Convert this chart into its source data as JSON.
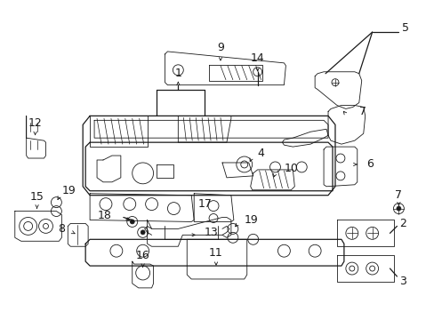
{
  "bg_color": "#ffffff",
  "line_color": "#1a1a1a",
  "fig_width": 4.89,
  "fig_height": 3.6,
  "dpi": 100,
  "label_fs": 8.5,
  "lw_main": 0.9,
  "lw_thin": 0.6
}
